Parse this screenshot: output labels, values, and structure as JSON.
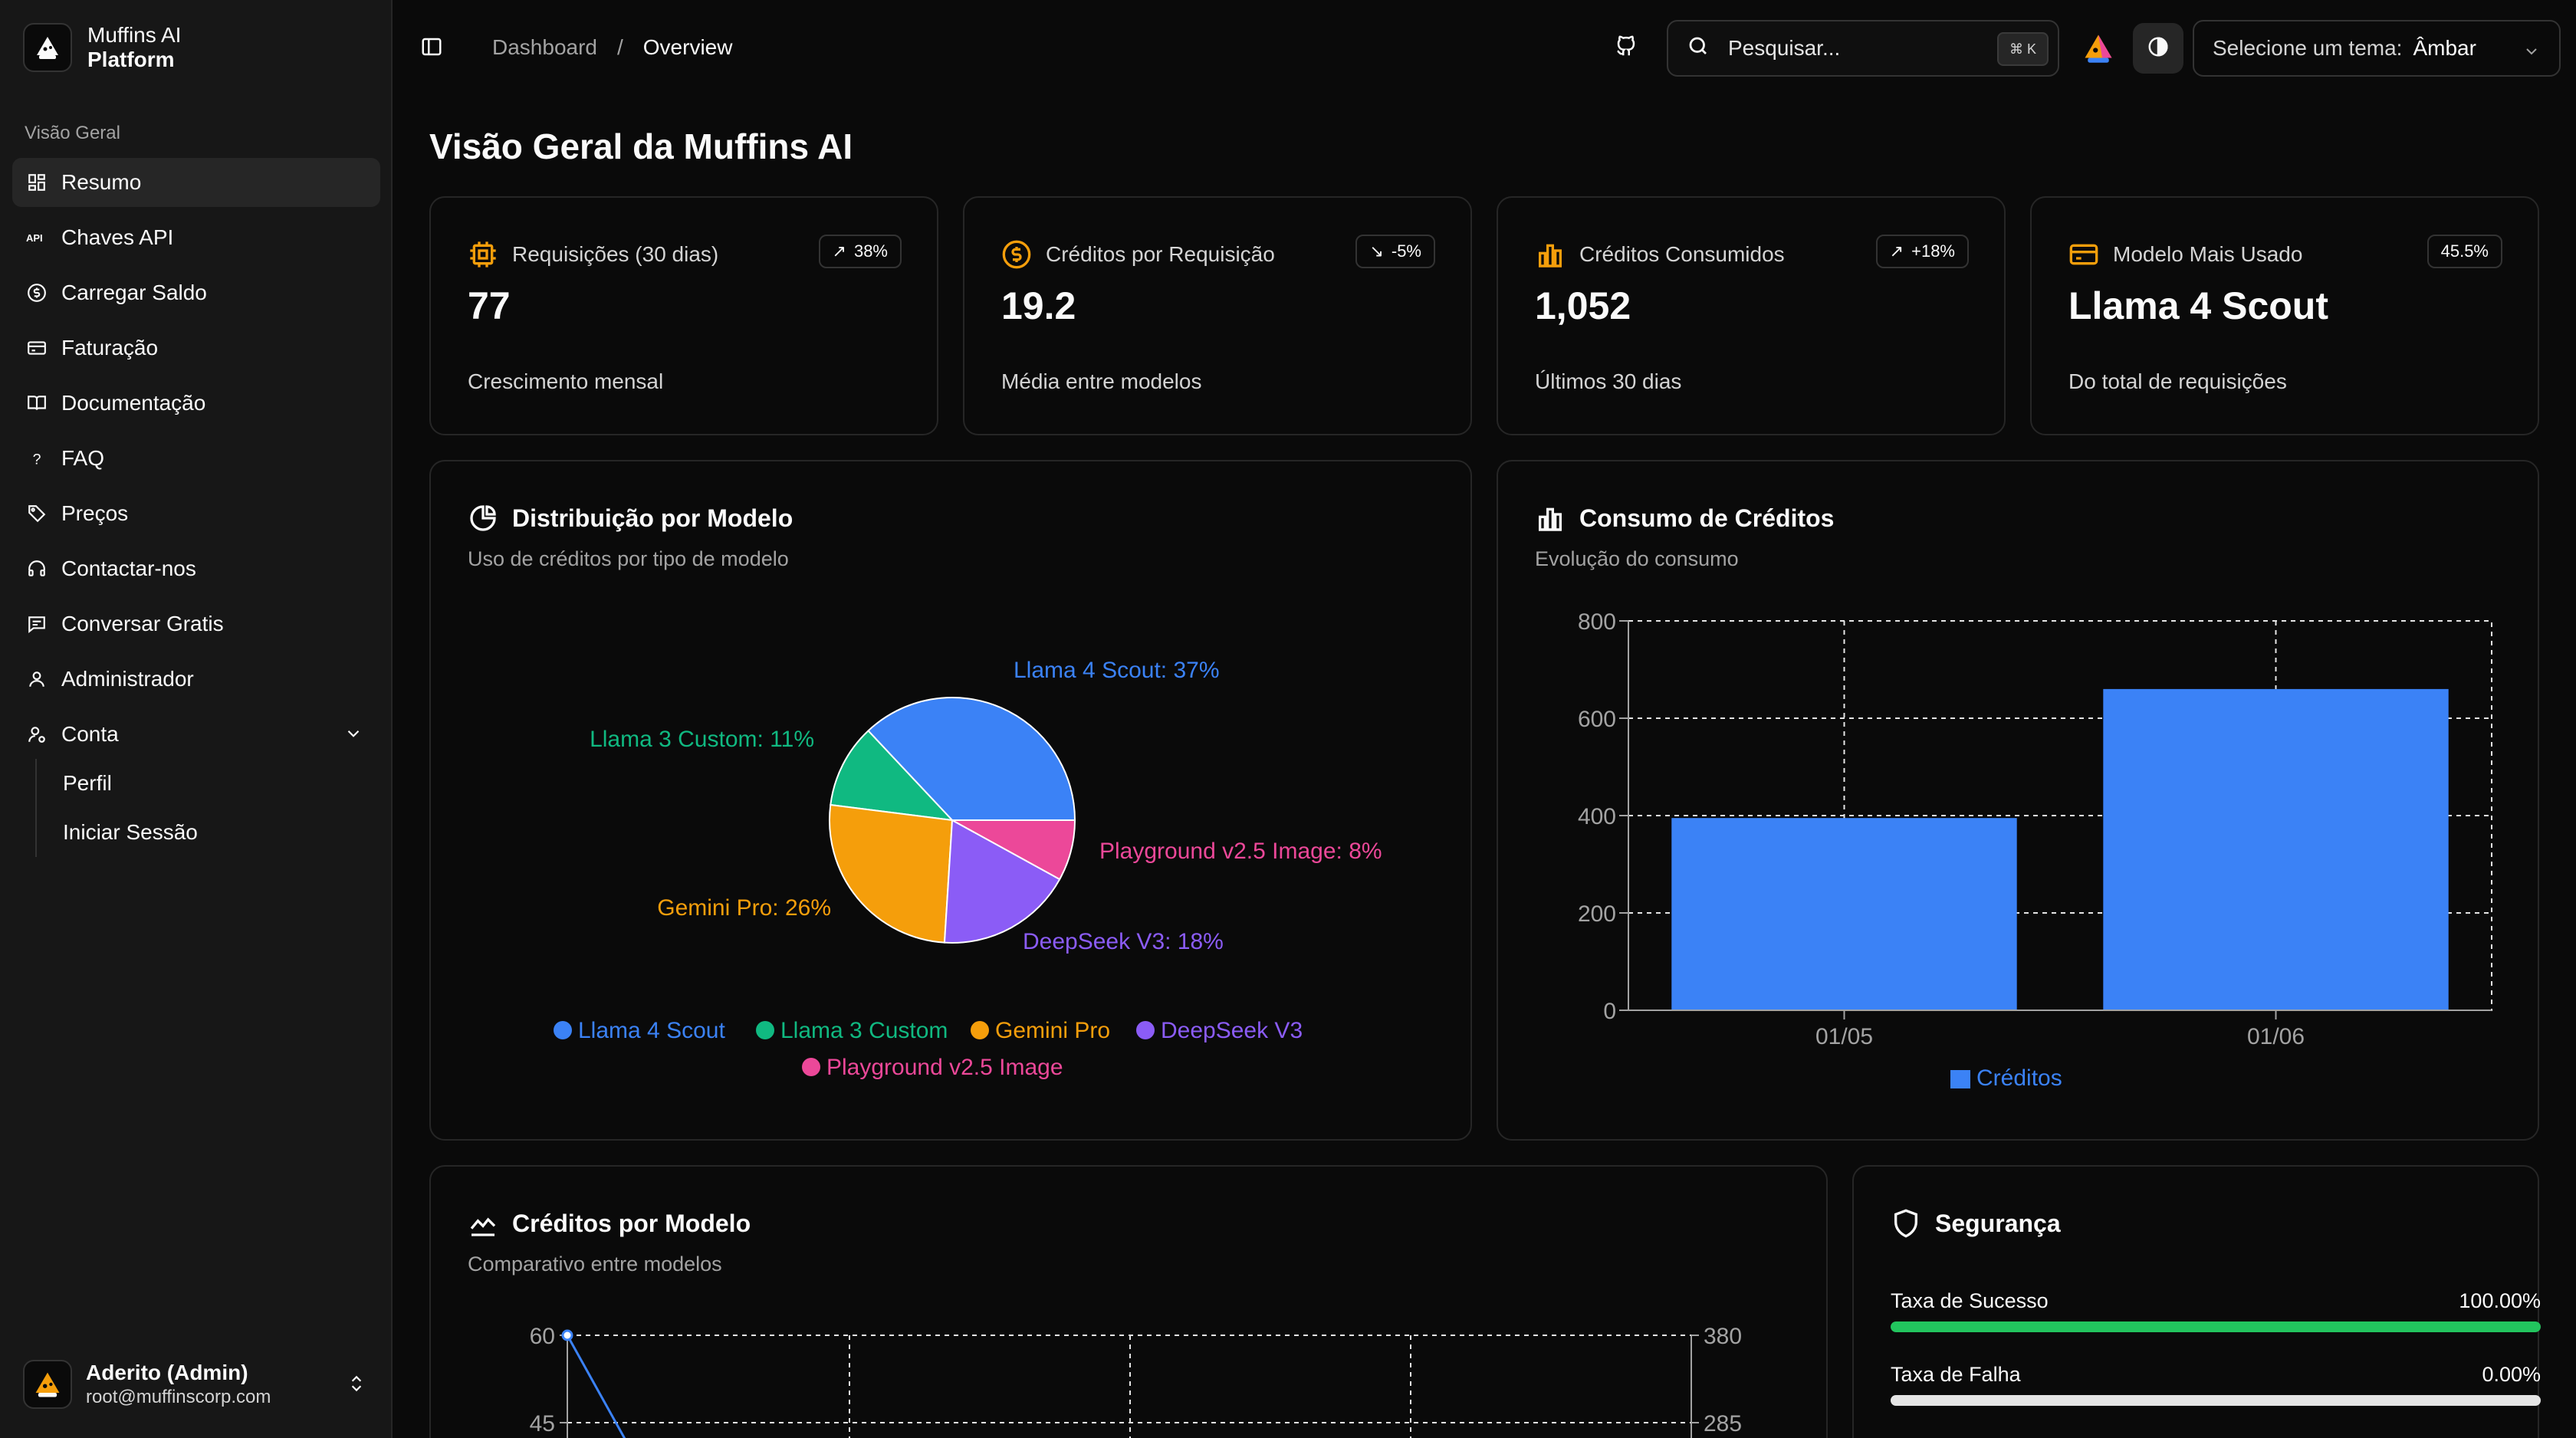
{
  "brand": {
    "line1": "Muffins AI",
    "line2": "Platform"
  },
  "sidebar": {
    "section_label": "Visão Geral",
    "items": [
      {
        "label": "Resumo",
        "icon": "dashboard-icon",
        "active": true
      },
      {
        "label": "Chaves API",
        "icon": "api-icon"
      },
      {
        "label": "Carregar Saldo",
        "icon": "dollar-circle-icon"
      },
      {
        "label": "Faturação",
        "icon": "credit-card-icon"
      },
      {
        "label": "Documentação",
        "icon": "book-icon"
      },
      {
        "label": "FAQ",
        "icon": "question-icon"
      },
      {
        "label": "Preços",
        "icon": "tag-icon"
      },
      {
        "label": "Contactar-nos",
        "icon": "headset-icon"
      },
      {
        "label": "Conversar Gratis",
        "icon": "chat-icon"
      },
      {
        "label": "Administrador",
        "icon": "user-icon"
      },
      {
        "label": "Conta",
        "icon": "user-gear-icon",
        "expanded": true
      }
    ],
    "subitems": [
      "Perfil",
      "Iniciar Sessão"
    ],
    "user": {
      "name": "Aderito (Admin)",
      "email": "root@muffinscorp.com"
    }
  },
  "topbar": {
    "breadcrumb": [
      "Dashboard",
      "Overview"
    ],
    "search_placeholder": "Pesquisar...",
    "search_shortcut": "⌘ K",
    "theme_label": "Selecione um tema:",
    "theme_value": "Âmbar"
  },
  "page_title": "Visão Geral da Muffins AI",
  "kpis": [
    {
      "title": "Requisições (30 dias)",
      "value": "77",
      "badge": "38%",
      "trend": "up",
      "sub": "Crescimento mensal",
      "icon": "cpu-icon"
    },
    {
      "title": "Créditos por Requisição",
      "value": "19.2",
      "badge": "-5%",
      "trend": "down",
      "sub": "Média entre modelos",
      "icon": "coin-icon"
    },
    {
      "title": "Créditos Consumidos",
      "value": "1,052",
      "badge": "+18%",
      "trend": "up",
      "sub": "Últimos 30 dias",
      "icon": "bar-chart-icon"
    },
    {
      "title": "Modelo Mais Usado",
      "value": "Llama 4 Scout",
      "badge": "45.5%",
      "trend": "none",
      "sub": "Do total de requisições",
      "icon": "card-icon"
    }
  ],
  "pie_panel": {
    "title": "Distribuição por Modelo",
    "subtitle": "Uso de créditos por tipo de modelo"
  },
  "bar_panel": {
    "title": "Consumo de Créditos",
    "subtitle": "Evolução do consumo"
  },
  "line_panel": {
    "title": "Créditos por Modelo",
    "subtitle": "Comparativo entre modelos"
  },
  "security": {
    "title": "Segurança",
    "rows": [
      {
        "label": "Taxa de Sucesso",
        "value": "100.00%",
        "fraction": 1.0,
        "color": "#22c55e"
      },
      {
        "label": "Taxa de Falha",
        "value": "0.00%",
        "fraction": 0.0,
        "color": "#ef4444"
      }
    ]
  },
  "chart_data": [
    {
      "type": "pie",
      "categories": [
        "Llama 4 Scout",
        "Llama 3 Custom",
        "Gemini Pro",
        "DeepSeek V3",
        "Playground v2.5 Image"
      ],
      "values": [
        37,
        11,
        26,
        18,
        8
      ],
      "slice_labels": [
        "Llama 4 Scout: 37%",
        "Llama 3 Custom: 11%",
        "Gemini Pro: 26%",
        "DeepSeek V3: 18%",
        "Playground v2.5 Image: 8%"
      ],
      "colors": [
        "#3b82f6",
        "#10b981",
        "#f59e0b",
        "#8b5cf6",
        "#ec4899"
      ],
      "legend": "bottom"
    },
    {
      "type": "bar",
      "categories": [
        "01/05",
        "01/06"
      ],
      "series": [
        {
          "name": "Créditos",
          "values": [
            395,
            660
          ],
          "color": "#3b82f6"
        }
      ],
      "ylim": [
        0,
        800
      ],
      "yticks": [
        "0",
        "200",
        "400",
        "600",
        "800"
      ],
      "grid": true,
      "legend": "bottom"
    },
    {
      "type": "line",
      "yticks_left": [
        "60",
        "45"
      ],
      "yticks_right": [
        "380",
        "285"
      ],
      "ylim_left": [
        0,
        60
      ],
      "ylim_right": [
        0,
        380
      ],
      "grid": true
    }
  ]
}
